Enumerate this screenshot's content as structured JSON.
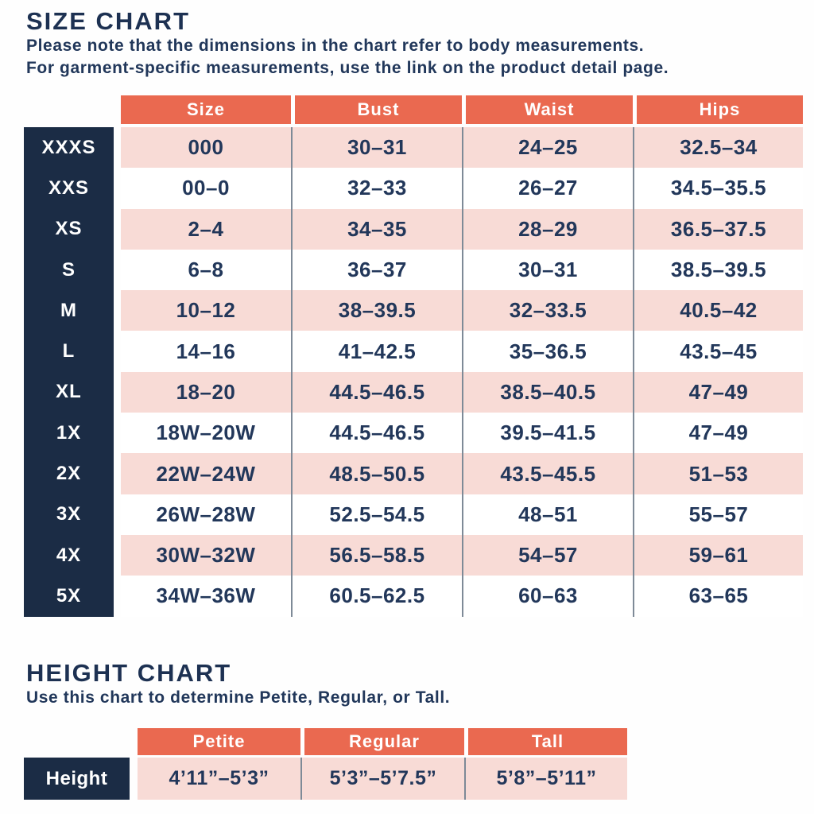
{
  "colors": {
    "coral": "#EA6950",
    "navy": "#1B2C45",
    "pink": "#F8DBD6",
    "text_navy": "#22375A",
    "divider_gray": "#7E8A97",
    "header_text": "#FFFFFF"
  },
  "size_chart": {
    "title": "SIZE CHART",
    "subtitle_line1": "Please note that the dimensions in the chart refer to body measurements.",
    "subtitle_line2": "For garment-specific measurements, use the link on the product detail page.",
    "columns": [
      "Size",
      "Bust",
      "Waist",
      "Hips"
    ],
    "rows": [
      {
        "label": "XXXS",
        "size": "000",
        "bust": "30–31",
        "waist": "24–25",
        "hips": "32.5–34"
      },
      {
        "label": "XXS",
        "size": "00–0",
        "bust": "32–33",
        "waist": "26–27",
        "hips": "34.5–35.5"
      },
      {
        "label": "XS",
        "size": "2–4",
        "bust": "34–35",
        "waist": "28–29",
        "hips": "36.5–37.5"
      },
      {
        "label": "S",
        "size": "6–8",
        "bust": "36–37",
        "waist": "30–31",
        "hips": "38.5–39.5"
      },
      {
        "label": "M",
        "size": "10–12",
        "bust": "38–39.5",
        "waist": "32–33.5",
        "hips": "40.5–42"
      },
      {
        "label": "L",
        "size": "14–16",
        "bust": "41–42.5",
        "waist": "35–36.5",
        "hips": "43.5–45"
      },
      {
        "label": "XL",
        "size": "18–20",
        "bust": "44.5–46.5",
        "waist": "38.5–40.5",
        "hips": "47–49"
      },
      {
        "label": "1X",
        "size": "18W–20W",
        "bust": "44.5–46.5",
        "waist": "39.5–41.5",
        "hips": "47–49"
      },
      {
        "label": "2X",
        "size": "22W–24W",
        "bust": "48.5–50.5",
        "waist": "43.5–45.5",
        "hips": "51–53"
      },
      {
        "label": "3X",
        "size": "26W–28W",
        "bust": "52.5–54.5",
        "waist": "48–51",
        "hips": "55–57"
      },
      {
        "label": "4X",
        "size": "30W–32W",
        "bust": "56.5–58.5",
        "waist": "54–57",
        "hips": "59–61"
      },
      {
        "label": "5X",
        "size": "34W–36W",
        "bust": "60.5–62.5",
        "waist": "60–63",
        "hips": "63–65"
      }
    ]
  },
  "height_chart": {
    "title": "HEIGHT CHART",
    "subtitle": "Use this chart to determine Petite, Regular, or Tall.",
    "columns": [
      "Petite",
      "Regular",
      "Tall"
    ],
    "row_label": "Height",
    "values": [
      "4’11”–5’3”",
      "5’3”–5’7.5”",
      "5’8”–5’11”"
    ]
  },
  "chart_data": [
    {
      "type": "table",
      "title": "SIZE CHART",
      "columns": [
        "",
        "Size",
        "Bust",
        "Waist",
        "Hips"
      ],
      "rows": [
        [
          "XXXS",
          "000",
          "30–31",
          "24–25",
          "32.5–34"
        ],
        [
          "XXS",
          "00–0",
          "32–33",
          "26–27",
          "34.5–35.5"
        ],
        [
          "XS",
          "2–4",
          "34–35",
          "28–29",
          "36.5–37.5"
        ],
        [
          "S",
          "6–8",
          "36–37",
          "30–31",
          "38.5–39.5"
        ],
        [
          "M",
          "10–12",
          "38–39.5",
          "32–33.5",
          "40.5–42"
        ],
        [
          "L",
          "14–16",
          "41–42.5",
          "35–36.5",
          "43.5–45"
        ],
        [
          "XL",
          "18–20",
          "44.5–46.5",
          "38.5–40.5",
          "47–49"
        ],
        [
          "1X",
          "18W–20W",
          "44.5–46.5",
          "39.5–41.5",
          "47–49"
        ],
        [
          "2X",
          "22W–24W",
          "48.5–50.5",
          "43.5–45.5",
          "51–53"
        ],
        [
          "3X",
          "26W–28W",
          "52.5–54.5",
          "48–51",
          "55–57"
        ],
        [
          "4X",
          "30W–32W",
          "56.5–58.5",
          "54–57",
          "59–61"
        ],
        [
          "5X",
          "34W–36W",
          "60.5–62.5",
          "60–63",
          "63–65"
        ]
      ]
    },
    {
      "type": "table",
      "title": "HEIGHT CHART",
      "columns": [
        "",
        "Petite",
        "Regular",
        "Tall"
      ],
      "rows": [
        [
          "Height",
          "4’11”–5’3”",
          "5’3”–5’7.5”",
          "5’8”–5’11”"
        ]
      ]
    }
  ]
}
